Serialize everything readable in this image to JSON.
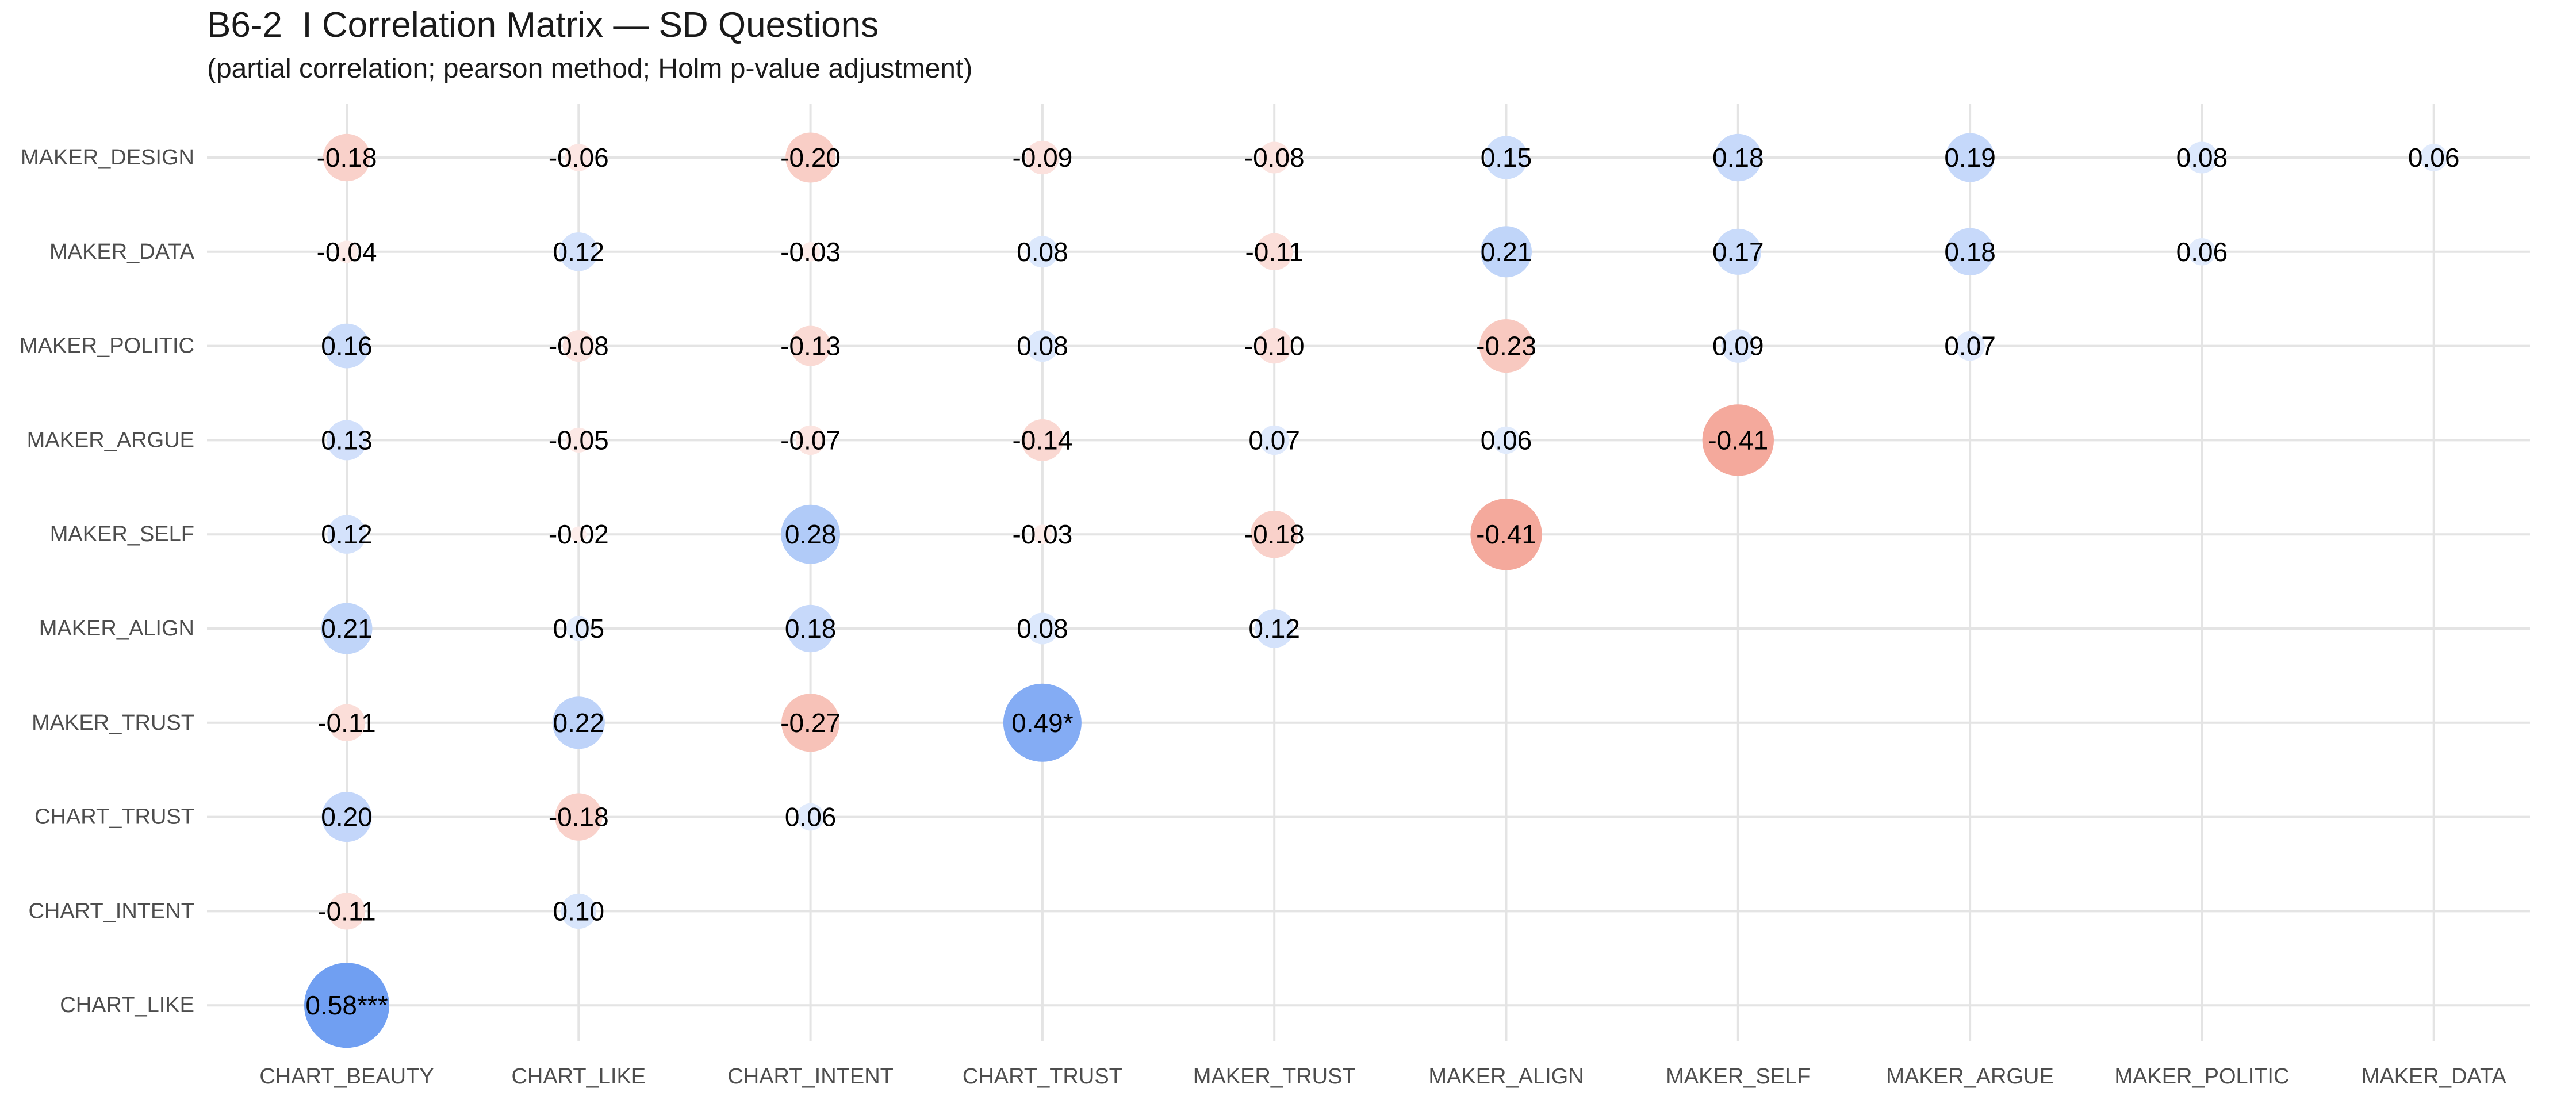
{
  "chart_data": {
    "type": "bubble-correlation-matrix",
    "title": "B6-2  I Correlation Matrix — SD Questions",
    "subtitle": "(partial correlation; pearson method; Holm p-value adjustment)",
    "x_categories": [
      "CHART_BEAUTY",
      "CHART_LIKE",
      "CHART_INTENT",
      "CHART_TRUST",
      "MAKER_TRUST",
      "MAKER_ALIGN",
      "MAKER_SELF",
      "MAKER_ARGUE",
      "MAKER_POLITIC",
      "MAKER_DATA"
    ],
    "y_categories": [
      "MAKER_DESIGN",
      "MAKER_DATA",
      "MAKER_POLITIC",
      "MAKER_ARGUE",
      "MAKER_SELF",
      "MAKER_ALIGN",
      "MAKER_TRUST",
      "CHART_TRUST",
      "CHART_INTENT",
      "CHART_LIKE"
    ],
    "cells": [
      {
        "x": "CHART_BEAUTY",
        "y": "MAKER_DESIGN",
        "r": -0.18,
        "label": "-0.18"
      },
      {
        "x": "CHART_LIKE",
        "y": "MAKER_DESIGN",
        "r": -0.06,
        "label": "-0.06"
      },
      {
        "x": "CHART_INTENT",
        "y": "MAKER_DESIGN",
        "r": -0.2,
        "label": "-0.20"
      },
      {
        "x": "CHART_TRUST",
        "y": "MAKER_DESIGN",
        "r": -0.09,
        "label": "-0.09"
      },
      {
        "x": "MAKER_TRUST",
        "y": "MAKER_DESIGN",
        "r": -0.08,
        "label": "-0.08"
      },
      {
        "x": "MAKER_ALIGN",
        "y": "MAKER_DESIGN",
        "r": 0.15,
        "label": "0.15"
      },
      {
        "x": "MAKER_SELF",
        "y": "MAKER_DESIGN",
        "r": 0.18,
        "label": "0.18"
      },
      {
        "x": "MAKER_ARGUE",
        "y": "MAKER_DESIGN",
        "r": 0.19,
        "label": "0.19"
      },
      {
        "x": "MAKER_POLITIC",
        "y": "MAKER_DESIGN",
        "r": 0.08,
        "label": "0.08"
      },
      {
        "x": "MAKER_DATA",
        "y": "MAKER_DESIGN",
        "r": 0.06,
        "label": "0.06"
      },
      {
        "x": "CHART_BEAUTY",
        "y": "MAKER_DATA",
        "r": -0.04,
        "label": "-0.04"
      },
      {
        "x": "CHART_LIKE",
        "y": "MAKER_DATA",
        "r": 0.12,
        "label": "0.12"
      },
      {
        "x": "CHART_INTENT",
        "y": "MAKER_DATA",
        "r": -0.03,
        "label": "-0.03"
      },
      {
        "x": "CHART_TRUST",
        "y": "MAKER_DATA",
        "r": 0.08,
        "label": "0.08"
      },
      {
        "x": "MAKER_TRUST",
        "y": "MAKER_DATA",
        "r": -0.11,
        "label": "-0.11"
      },
      {
        "x": "MAKER_ALIGN",
        "y": "MAKER_DATA",
        "r": 0.21,
        "label": "0.21"
      },
      {
        "x": "MAKER_SELF",
        "y": "MAKER_DATA",
        "r": 0.17,
        "label": "0.17"
      },
      {
        "x": "MAKER_ARGUE",
        "y": "MAKER_DATA",
        "r": 0.18,
        "label": "0.18"
      },
      {
        "x": "MAKER_POLITIC",
        "y": "MAKER_DATA",
        "r": 0.06,
        "label": "0.06"
      },
      {
        "x": "CHART_BEAUTY",
        "y": "MAKER_POLITIC",
        "r": 0.16,
        "label": "0.16"
      },
      {
        "x": "CHART_LIKE",
        "y": "MAKER_POLITIC",
        "r": -0.08,
        "label": "-0.08"
      },
      {
        "x": "CHART_INTENT",
        "y": "MAKER_POLITIC",
        "r": -0.13,
        "label": "-0.13"
      },
      {
        "x": "CHART_TRUST",
        "y": "MAKER_POLITIC",
        "r": 0.08,
        "label": "0.08"
      },
      {
        "x": "MAKER_TRUST",
        "y": "MAKER_POLITIC",
        "r": -0.1,
        "label": "-0.10"
      },
      {
        "x": "MAKER_ALIGN",
        "y": "MAKER_POLITIC",
        "r": -0.23,
        "label": "-0.23"
      },
      {
        "x": "MAKER_SELF",
        "y": "MAKER_POLITIC",
        "r": 0.09,
        "label": "0.09"
      },
      {
        "x": "MAKER_ARGUE",
        "y": "MAKER_POLITIC",
        "r": 0.07,
        "label": "0.07"
      },
      {
        "x": "CHART_BEAUTY",
        "y": "MAKER_ARGUE",
        "r": 0.13,
        "label": "0.13"
      },
      {
        "x": "CHART_LIKE",
        "y": "MAKER_ARGUE",
        "r": -0.05,
        "label": "-0.05"
      },
      {
        "x": "CHART_INTENT",
        "y": "MAKER_ARGUE",
        "r": -0.07,
        "label": "-0.07"
      },
      {
        "x": "CHART_TRUST",
        "y": "MAKER_ARGUE",
        "r": -0.14,
        "label": "-0.14"
      },
      {
        "x": "MAKER_TRUST",
        "y": "MAKER_ARGUE",
        "r": 0.07,
        "label": "0.07"
      },
      {
        "x": "MAKER_ALIGN",
        "y": "MAKER_ARGUE",
        "r": 0.06,
        "label": "0.06"
      },
      {
        "x": "MAKER_SELF",
        "y": "MAKER_ARGUE",
        "r": -0.41,
        "label": "-0.41"
      },
      {
        "x": "CHART_BEAUTY",
        "y": "MAKER_SELF",
        "r": 0.12,
        "label": "0.12"
      },
      {
        "x": "CHART_LIKE",
        "y": "MAKER_SELF",
        "r": -0.02,
        "label": "-0.02"
      },
      {
        "x": "CHART_INTENT",
        "y": "MAKER_SELF",
        "r": 0.28,
        "label": "0.28"
      },
      {
        "x": "CHART_TRUST",
        "y": "MAKER_SELF",
        "r": -0.03,
        "label": "-0.03"
      },
      {
        "x": "MAKER_TRUST",
        "y": "MAKER_SELF",
        "r": -0.18,
        "label": "-0.18"
      },
      {
        "x": "MAKER_ALIGN",
        "y": "MAKER_SELF",
        "r": -0.41,
        "label": "-0.41"
      },
      {
        "x": "CHART_BEAUTY",
        "y": "MAKER_ALIGN",
        "r": 0.21,
        "label": "0.21"
      },
      {
        "x": "CHART_LIKE",
        "y": "MAKER_ALIGN",
        "r": 0.05,
        "label": "0.05"
      },
      {
        "x": "CHART_INTENT",
        "y": "MAKER_ALIGN",
        "r": 0.18,
        "label": "0.18"
      },
      {
        "x": "CHART_TRUST",
        "y": "MAKER_ALIGN",
        "r": 0.08,
        "label": "0.08"
      },
      {
        "x": "MAKER_TRUST",
        "y": "MAKER_ALIGN",
        "r": 0.12,
        "label": "0.12"
      },
      {
        "x": "CHART_BEAUTY",
        "y": "MAKER_TRUST",
        "r": -0.11,
        "label": "-0.11"
      },
      {
        "x": "CHART_LIKE",
        "y": "MAKER_TRUST",
        "r": 0.22,
        "label": "0.22"
      },
      {
        "x": "CHART_INTENT",
        "y": "MAKER_TRUST",
        "r": -0.27,
        "label": "-0.27"
      },
      {
        "x": "CHART_TRUST",
        "y": "MAKER_TRUST",
        "r": 0.49,
        "label": "0.49*"
      },
      {
        "x": "CHART_BEAUTY",
        "y": "CHART_TRUST",
        "r": 0.2,
        "label": "0.20"
      },
      {
        "x": "CHART_LIKE",
        "y": "CHART_TRUST",
        "r": -0.18,
        "label": "-0.18"
      },
      {
        "x": "CHART_INTENT",
        "y": "CHART_TRUST",
        "r": 0.06,
        "label": "0.06"
      },
      {
        "x": "CHART_BEAUTY",
        "y": "CHART_INTENT",
        "r": -0.11,
        "label": "-0.11"
      },
      {
        "x": "CHART_LIKE",
        "y": "CHART_INTENT",
        "r": 0.1,
        "label": "0.10"
      },
      {
        "x": "CHART_BEAUTY",
        "y": "CHART_LIKE",
        "r": 0.58,
        "label": "0.58***"
      }
    ],
    "colors": {
      "positive": "#6f9ef2",
      "negative": "#f08a78",
      "gridline": "#e4e4e4",
      "text": "#000000",
      "axis_text": "#4d4d4d"
    },
    "grid": true,
    "legend": "none"
  }
}
